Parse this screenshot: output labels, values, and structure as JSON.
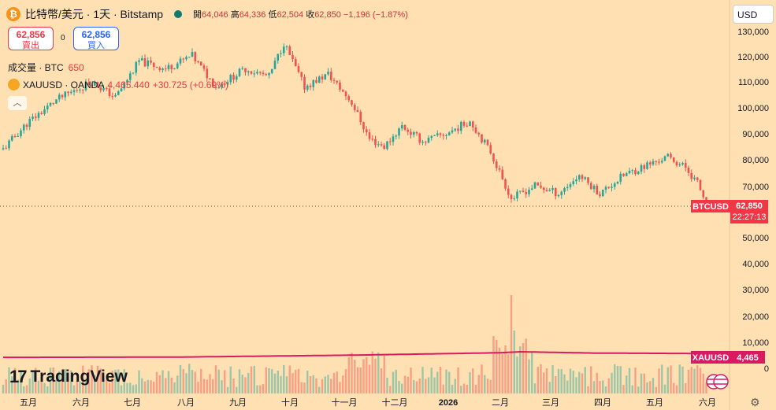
{
  "header": {
    "symbol_title": "比特幣/美元 · 1天 · Bitstamp",
    "open_label": "開",
    "open": "64,046",
    "high_label": "高",
    "high": "64,336",
    "low_label": "低",
    "low": "62,504",
    "close_label": "收",
    "close": "62,850",
    "change": "−1,196 (−1.87%)",
    "coin_glyph": "₿"
  },
  "trade": {
    "sell_price": "62,856",
    "sell_label": "賣出",
    "spread": "0",
    "buy_price": "62,856",
    "buy_label": "買入"
  },
  "volume": {
    "label": "成交量 · BTC",
    "value": "650"
  },
  "compare": {
    "label": "XAUUSD · OANDA",
    "value": "4,465.440",
    "change": "+30.725 (+0.69%)"
  },
  "currency_selector": "USD",
  "logo_text": "TradingView",
  "colors": {
    "up": "#26a69a",
    "down": "#ef5350",
    "gold_line": "#d81b60",
    "background": "#ffe0b2"
  },
  "icons": {
    "collapse": "chevron-up-icon",
    "settings": "gear-icon",
    "flag": "us-flag-icon"
  },
  "chart_data": {
    "type": "candlestick",
    "series": [
      {
        "name": "BTCUSD",
        "last": 62850,
        "last_label": "62,850",
        "countdown": "22:27:13"
      },
      {
        "name": "XAUUSD",
        "last": 4465,
        "last_label": "4,465"
      }
    ],
    "y_axis": {
      "ticks": [
        "130,000",
        "120,000",
        "110,000",
        "100,000",
        "90,000",
        "80,000",
        "70,000",
        "50,000",
        "40,000",
        "30,000",
        "20,000",
        "10,000",
        "0"
      ],
      "ylim": [
        -2000,
        133000
      ]
    },
    "x_axis": {
      "ticks": [
        "五月",
        "六月",
        "七月",
        "八月",
        "九月",
        "十月",
        "十一月",
        "十二月",
        "2026",
        "二月",
        "三月",
        "四月",
        "五月",
        "六月"
      ]
    },
    "price_anchors": [
      [
        0,
        84000
      ],
      [
        8,
        94000
      ],
      [
        18,
        103000
      ],
      [
        30,
        110000
      ],
      [
        38,
        104000
      ],
      [
        46,
        118000
      ],
      [
        55,
        115000
      ],
      [
        64,
        120000
      ],
      [
        72,
        108000
      ],
      [
        82,
        115000
      ],
      [
        90,
        112000
      ],
      [
        95,
        125000
      ],
      [
        102,
        108000
      ],
      [
        110,
        113000
      ],
      [
        118,
        102000
      ],
      [
        124,
        88000
      ],
      [
        129,
        85000
      ],
      [
        135,
        93000
      ],
      [
        142,
        87000
      ],
      [
        150,
        90000
      ],
      [
        158,
        95000
      ],
      [
        165,
        83000
      ],
      [
        172,
        65000
      ],
      [
        180,
        70000
      ],
      [
        188,
        67000
      ],
      [
        195,
        74000
      ],
      [
        202,
        67000
      ],
      [
        210,
        74000
      ],
      [
        218,
        78000
      ],
      [
        225,
        81000
      ],
      [
        231,
        77000
      ],
      [
        235,
        71000
      ],
      [
        238,
        63000
      ]
    ],
    "gold_anchors": [
      [
        0,
        3300
      ],
      [
        60,
        3400
      ],
      [
        120,
        4000
      ],
      [
        168,
        4700
      ],
      [
        175,
        5000
      ],
      [
        200,
        4600
      ],
      [
        238,
        4465
      ]
    ]
  }
}
